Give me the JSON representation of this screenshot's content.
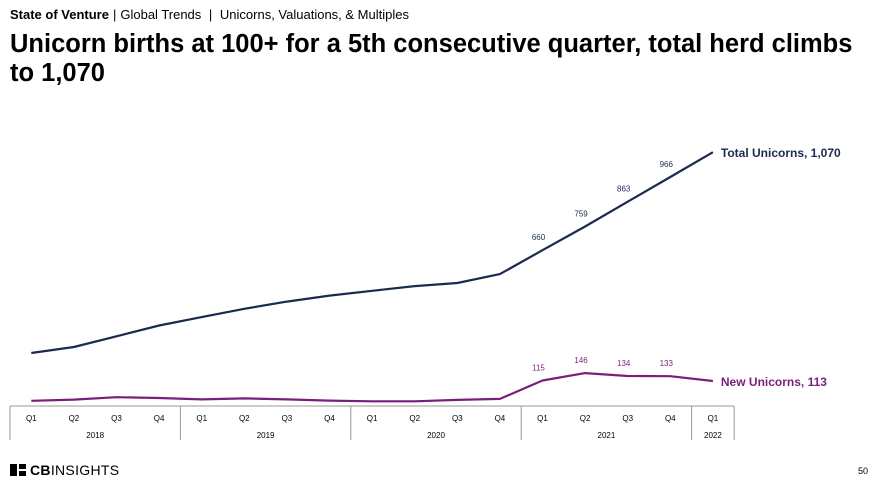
{
  "header": {
    "brand": "State of Venture",
    "crumb1": "Global Trends",
    "crumb2": "Unicorns, Valuations, & Multiples",
    "title": "Unicorn births at 100+ for a 5th consecutive quarter, total herd climbs to 1,070"
  },
  "footer": {
    "logo_cb": "CB",
    "logo_insights": "INSIGHTS",
    "page_number": "50"
  },
  "colors": {
    "total": "#1b2a4e",
    "new": "#7b1e7a",
    "axis": "#9a9a9a"
  },
  "chart_data": {
    "type": "line",
    "categories": [
      "Q1",
      "Q2",
      "Q3",
      "Q4",
      "Q1",
      "Q2",
      "Q3",
      "Q4",
      "Q1",
      "Q2",
      "Q3",
      "Q4",
      "Q1",
      "Q2",
      "Q3",
      "Q4",
      "Q1"
    ],
    "years": [
      {
        "label": "2018",
        "span": 4
      },
      {
        "label": "2019",
        "span": 4
      },
      {
        "label": "2020",
        "span": 4
      },
      {
        "label": "2021",
        "span": 4
      },
      {
        "label": "2022",
        "span": 1
      }
    ],
    "series": [
      {
        "name": "Total Unicorns",
        "end_label": "Total Unicorns, 1,070",
        "values": [
          230,
          255,
          300,
          345,
          380,
          415,
          445,
          470,
          490,
          510,
          523,
          560,
          660,
          759,
          863,
          966,
          1070
        ],
        "data_labels": [
          "",
          "",
          "",
          "",
          "",
          "",
          "",
          "",
          "",
          "",
          "",
          "",
          "660",
          "759",
          "863",
          "966",
          ""
        ]
      },
      {
        "name": "New Unicorns",
        "end_label": "New Unicorns, 113",
        "values": [
          30,
          35,
          45,
          42,
          36,
          40,
          36,
          31,
          28,
          28,
          34,
          38,
          115,
          146,
          134,
          133,
          113
        ],
        "data_labels": [
          "",
          "",
          "",
          "",
          "",
          "",
          "",
          "",
          "",
          "",
          "",
          "",
          "115",
          "146",
          "134",
          "133",
          ""
        ]
      }
    ],
    "ylim": [
      0,
      1100
    ],
    "grid": false,
    "legend": "end-of-line labels"
  }
}
